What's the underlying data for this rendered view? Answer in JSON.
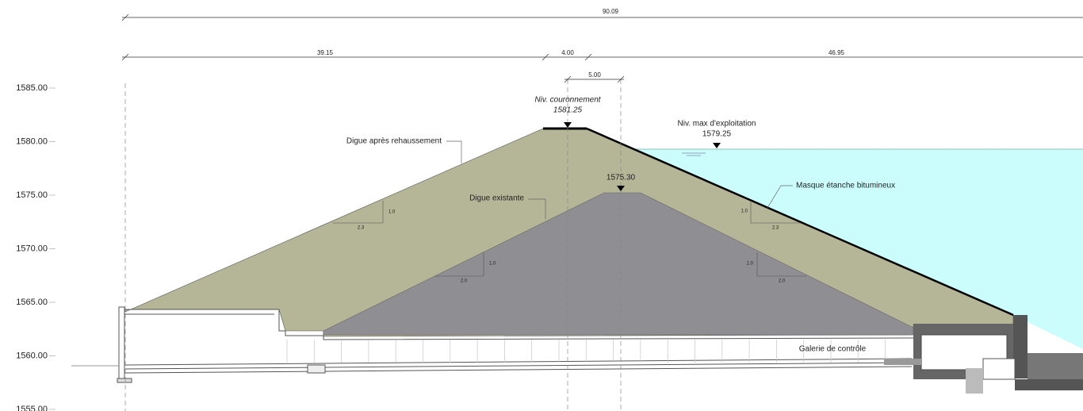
{
  "dimensions": {
    "total": "90.09",
    "upstream": "39.15",
    "crest": "4.00",
    "existing_crest": "5.00",
    "downstream": "46.95"
  },
  "elevations": [
    "1585.00",
    "1580.00",
    "1575.00",
    "1570.00",
    "1565.00",
    "1560.00",
    "1555.00"
  ],
  "crest": {
    "label": "Niv. couronnement",
    "level": "1581.25"
  },
  "max_level": {
    "label": "Niv. max d'exploitation",
    "level": "1579.25"
  },
  "existing_crest_level": "1575.30",
  "labels": {
    "raised_dam": "Digue après rehaussement",
    "existing_dam": "Digue existante",
    "mask": "Masque étanche bitumineux",
    "gallery": "Galerie de contrôle"
  },
  "slopes": [
    {
      "rise": "1.0",
      "run": "2.3"
    },
    {
      "rise": "1.0",
      "run": "2.0"
    },
    {
      "rise": "1.0",
      "run": "2.0"
    },
    {
      "rise": "1.0",
      "run": "2.3"
    }
  ]
}
